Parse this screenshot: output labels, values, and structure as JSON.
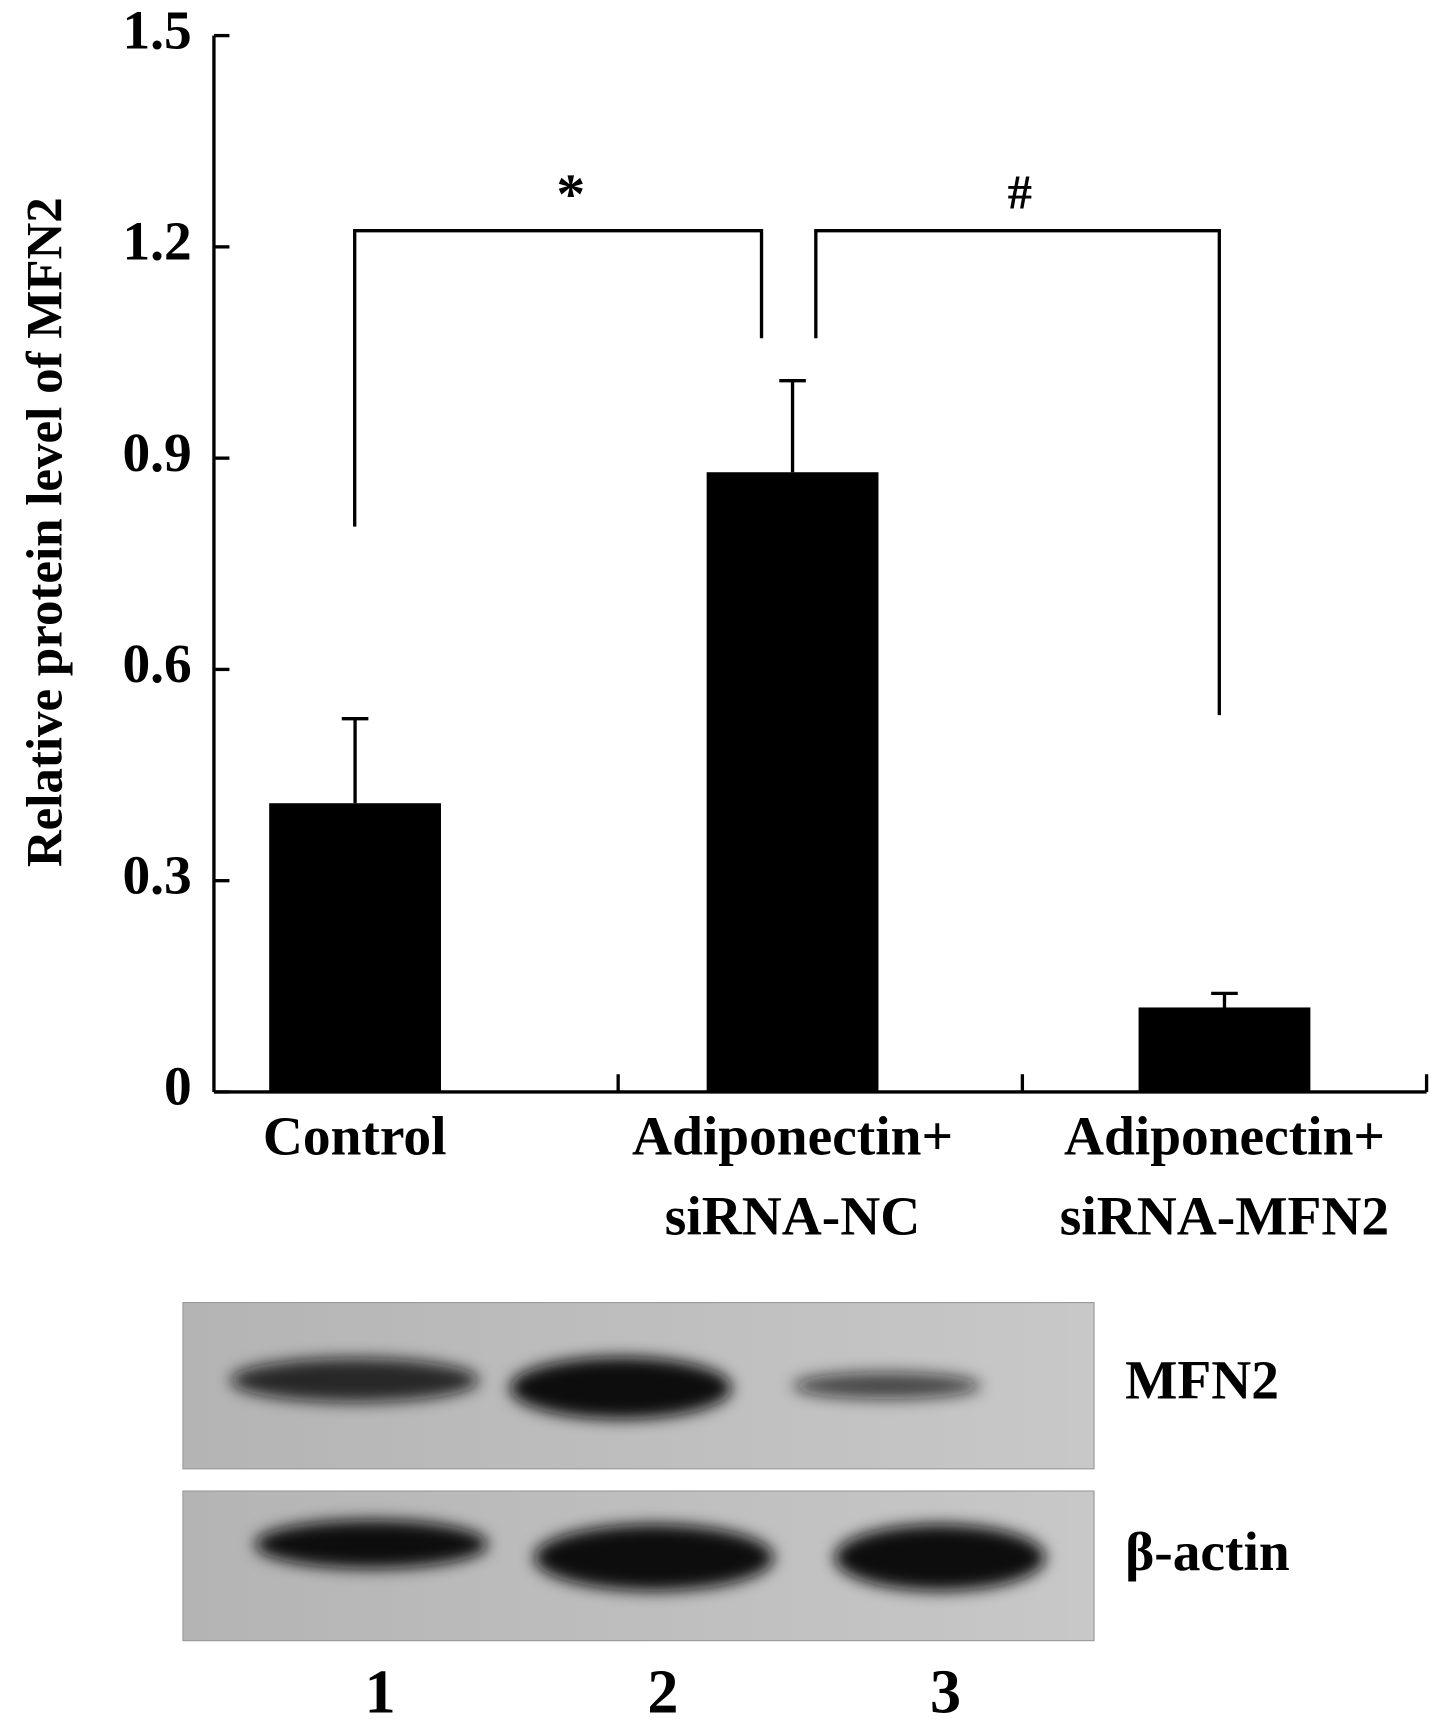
{
  "chart_data": {
    "type": "bar",
    "y_label": "Relative protein level of MFN2",
    "categories": [
      [
        "Control"
      ],
      [
        "Adiponectin+",
        "siRNA-NC"
      ],
      [
        "Adiponectin+",
        "siRNA-MFN2"
      ]
    ],
    "values": [
      0.41,
      0.88,
      0.12
    ],
    "errors": [
      0.12,
      0.13,
      0.02
    ],
    "color": "#000000",
    "ylim": [
      0,
      1.5
    ],
    "yticks": [
      1.5,
      1.2,
      0.9,
      0.6,
      0.3,
      0
    ],
    "annotations": [
      {
        "text": "*"
      },
      {
        "text": "#"
      }
    ]
  },
  "blot": {
    "rows": [
      "MFN2",
      "β-actin"
    ],
    "lanes": [
      "1",
      "2",
      "3"
    ]
  }
}
